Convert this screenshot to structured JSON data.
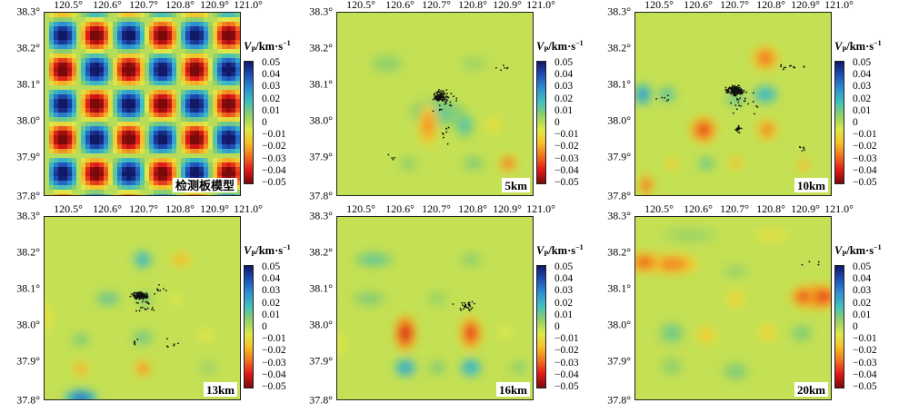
{
  "figure": {
    "colorbar": {
      "title_var": "V",
      "title_sub": "P",
      "title_rest": "/km·s",
      "title_sup": "−1",
      "ticks": [
        "0.05",
        "0.04",
        "0.03",
        "0.02",
        "0.01",
        "0",
        "−0.01",
        "−0.02",
        "−0.03",
        "−0.04",
        "−0.05"
      ],
      "range": [
        -0.05,
        0.05
      ],
      "colors": [
        "#7a0a0a",
        "#e01818",
        "#f07020",
        "#f5c028",
        "#dde84a",
        "#8fd06a",
        "#3fc0c0",
        "#2f8fd0",
        "#1f4fb8",
        "#111866"
      ]
    },
    "x_ticks": [
      "120.5°",
      "120.6°",
      "120.7°",
      "120.8°",
      "120.9°",
      "121.0°"
    ],
    "y_ticks": [
      "38.3°",
      "38.2°",
      "38.1°",
      "38.0°",
      "37.9°",
      "37.8°"
    ],
    "panels": [
      {
        "id": "p0",
        "label": "检测板模型",
        "type": "checker"
      },
      {
        "id": "p1",
        "label": "5km",
        "type": "result",
        "depth_km": 5
      },
      {
        "id": "p2",
        "label": "10km",
        "type": "result",
        "depth_km": 10
      },
      {
        "id": "p3",
        "label": "13km",
        "type": "result",
        "depth_km": 13
      },
      {
        "id": "p4",
        "label": "16km",
        "type": "result",
        "depth_km": 16
      },
      {
        "id": "p5",
        "label": "20km",
        "type": "result",
        "depth_km": 20
      }
    ]
  }
}
